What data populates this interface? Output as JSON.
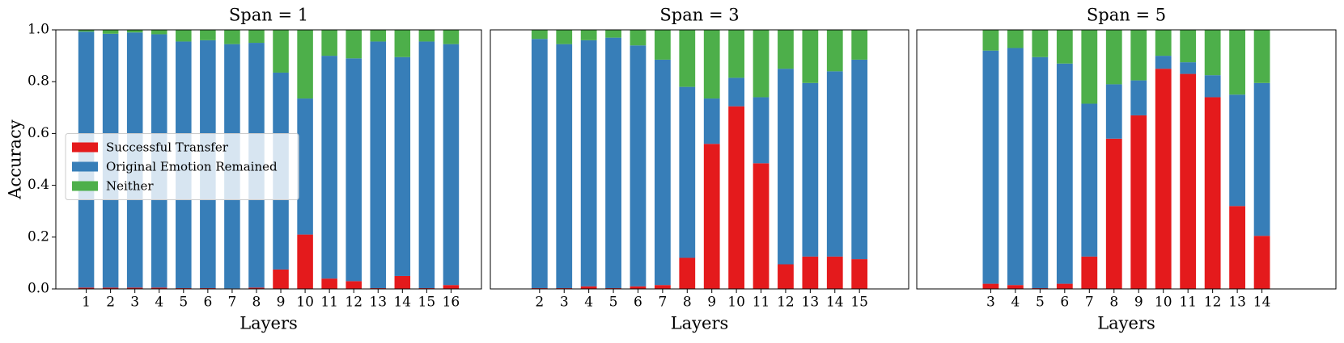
{
  "chart_data": [
    {
      "type": "bar",
      "stacked": true,
      "title": "Span = 1",
      "xlabel": "Layers",
      "ylabel": "Accuracy",
      "legend": "center left",
      "x": [
        1,
        2,
        3,
        4,
        5,
        6,
        7,
        8,
        9,
        10,
        11,
        12,
        13,
        14,
        15,
        16
      ],
      "xlim": [
        -0.25,
        17.25
      ],
      "xticks": [
        1,
        2,
        3,
        4,
        5,
        6,
        7,
        8,
        9,
        10,
        11,
        12,
        13,
        14,
        15,
        16
      ],
      "ylim": [
        0,
        1
      ],
      "yticks": [
        {
          "value": 0,
          "label": "0.0"
        },
        {
          "value": 0.2,
          "label": "0.2"
        },
        {
          "value": 0.4,
          "label": "0.4"
        },
        {
          "value": 0.6,
          "label": "0.6"
        },
        {
          "value": 0.8,
          "label": "0.8"
        },
        {
          "value": 1,
          "label": "1.0"
        }
      ],
      "series": [
        {
          "name": "Successful Transfer",
          "color": "#e41a1c",
          "values": [
            0.005,
            0.005,
            0.005,
            0.005,
            0.003,
            0.003,
            0.002,
            0.005,
            0.075,
            0.21,
            0.04,
            0.03,
            0.003,
            0.05,
            0.003,
            0.015
          ]
        },
        {
          "name": "Original Emotion Remained",
          "color": "#377eb8",
          "values": [
            0.988,
            0.98,
            0.985,
            0.978,
            0.952,
            0.957,
            0.943,
            0.945,
            0.76,
            0.525,
            0.86,
            0.86,
            0.952,
            0.845,
            0.952,
            0.93
          ]
        },
        {
          "name": "Neither",
          "color": "#4daf4a",
          "values": [
            0.007,
            0.015,
            0.01,
            0.017,
            0.045,
            0.04,
            0.055,
            0.05,
            0.165,
            0.265,
            0.1,
            0.11,
            0.045,
            0.105,
            0.045,
            0.055
          ]
        }
      ]
    },
    {
      "type": "bar",
      "stacked": true,
      "title": "Span = 3",
      "xlabel": "Layers",
      "x": [
        2,
        3,
        4,
        5,
        6,
        7,
        8,
        9,
        10,
        11,
        12,
        13,
        14,
        15
      ],
      "xlim": [
        0,
        17
      ],
      "xticks": [
        2,
        3,
        4,
        5,
        6,
        7,
        8,
        9,
        10,
        11,
        12,
        13,
        14,
        15
      ],
      "ylim": [
        0,
        1
      ],
      "series": [
        {
          "color": "#e41a1c",
          "values": [
            0.003,
            0.003,
            0.01,
            0.003,
            0.01,
            0.015,
            0.12,
            0.56,
            0.705,
            0.485,
            0.095,
            0.125,
            0.125,
            0.115
          ]
        },
        {
          "color": "#377eb8",
          "values": [
            0.962,
            0.942,
            0.95,
            0.967,
            0.93,
            0.87,
            0.66,
            0.175,
            0.11,
            0.255,
            0.755,
            0.67,
            0.715,
            0.77
          ]
        },
        {
          "color": "#4daf4a",
          "values": [
            0.035,
            0.055,
            0.04,
            0.03,
            0.06,
            0.115,
            0.22,
            0.265,
            0.185,
            0.26,
            0.15,
            0.205,
            0.16,
            0.115
          ]
        }
      ]
    },
    {
      "type": "bar",
      "stacked": true,
      "title": "Span = 5",
      "xlabel": "Layers",
      "x": [
        3,
        4,
        5,
        6,
        7,
        8,
        9,
        10,
        11,
        12,
        13,
        14
      ],
      "xlim": [
        0,
        17
      ],
      "xticks": [
        3,
        4,
        5,
        6,
        7,
        8,
        9,
        10,
        11,
        12,
        13,
        14
      ],
      "ylim": [
        0,
        1
      ],
      "series": [
        {
          "color": "#e41a1c",
          "values": [
            0.02,
            0.015,
            0.003,
            0.02,
            0.125,
            0.58,
            0.67,
            0.85,
            0.83,
            0.74,
            0.32,
            0.205
          ]
        },
        {
          "color": "#377eb8",
          "values": [
            0.9,
            0.915,
            0.892,
            0.85,
            0.59,
            0.21,
            0.135,
            0.05,
            0.045,
            0.085,
            0.43,
            0.59
          ]
        },
        {
          "color": "#4daf4a",
          "values": [
            0.08,
            0.07,
            0.105,
            0.13,
            0.285,
            0.21,
            0.195,
            0.1,
            0.125,
            0.175,
            0.25,
            0.205
          ]
        }
      ]
    }
  ]
}
